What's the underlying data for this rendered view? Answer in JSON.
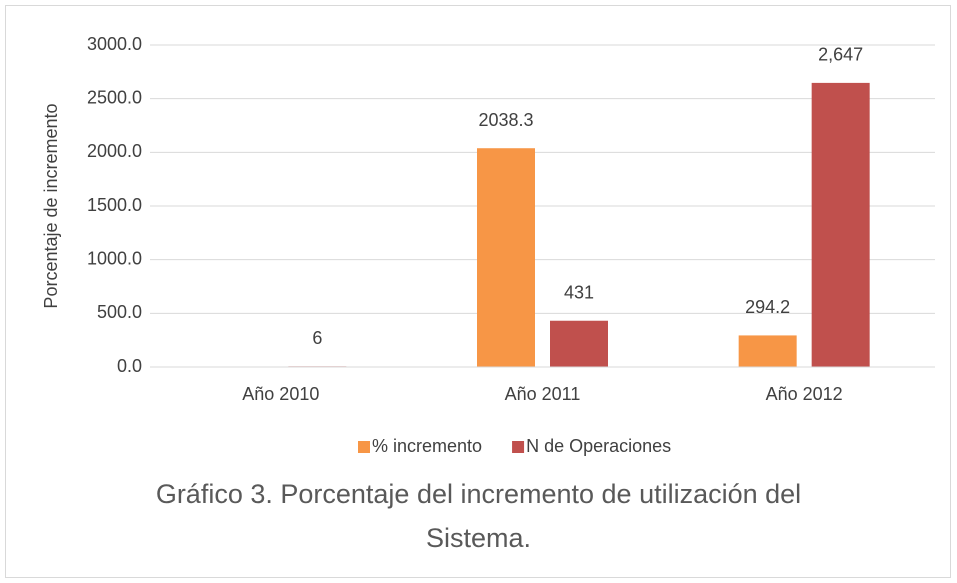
{
  "chart_data": {
    "type": "bar",
    "y_label": "Porcentaje de incremento",
    "categories": [
      "Año 2010",
      "Año 2011",
      "Año 2012"
    ],
    "series": [
      {
        "name": "% incremento",
        "color": "#f79646",
        "values": [
          null,
          2038.3,
          294.2
        ]
      },
      {
        "name": "N de Operaciones",
        "color": "#c0504d",
        "values": [
          6,
          431,
          2647
        ],
        "value_labels": [
          "6",
          "431",
          "2,647"
        ]
      }
    ],
    "ylim": [
      0,
      3000
    ],
    "yticks": [
      {
        "value": 0,
        "label": "0.0"
      },
      {
        "value": 500,
        "label": "500.0"
      },
      {
        "value": 1000,
        "label": "1000.0"
      },
      {
        "value": 1500,
        "label": "1500.0"
      },
      {
        "value": 2000,
        "label": "2000.0"
      },
      {
        "value": 2500,
        "label": "2500.0"
      },
      {
        "value": 3000,
        "label": "3000.0"
      }
    ],
    "grid": true,
    "legend": "bottom",
    "caption": "Gráfico 3. Porcentaje del incremento de utilización del Sistema."
  }
}
